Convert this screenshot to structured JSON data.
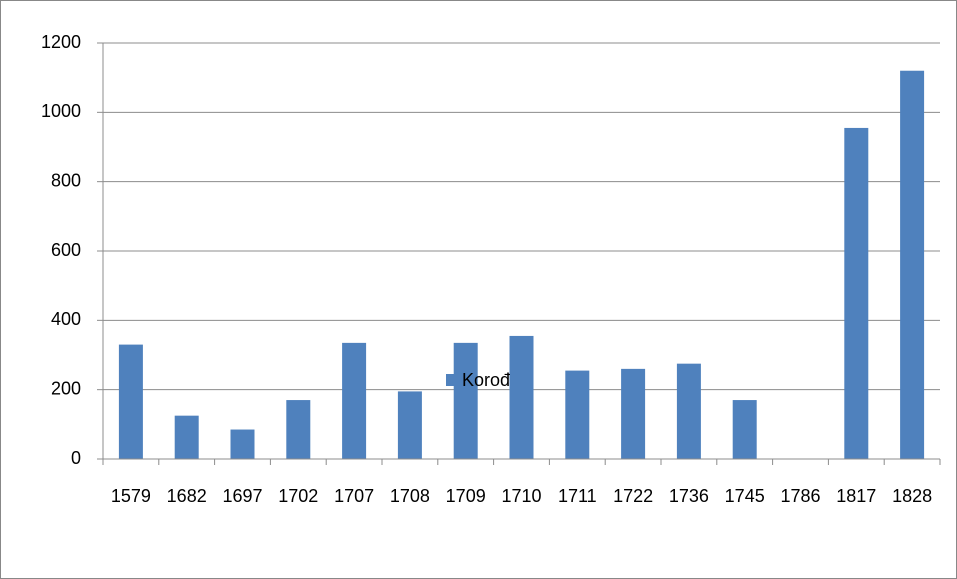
{
  "chart_data": {
    "type": "bar",
    "categories": [
      "1579",
      "1682",
      "1697",
      "1702",
      "1707",
      "1708",
      "1709",
      "1710",
      "1711",
      "1722",
      "1736",
      "1745",
      "1786",
      "1817",
      "1828"
    ],
    "series": [
      {
        "name": "Korođ",
        "color": "#4f81bd",
        "values": [
          330,
          125,
          85,
          170,
          335,
          195,
          335,
          355,
          255,
          260,
          275,
          170,
          0,
          955,
          1120
        ]
      }
    ],
    "ylim": [
      0,
      1200
    ],
    "yticks": [
      0,
      200,
      400,
      600,
      800,
      1000,
      1200
    ],
    "grid": true,
    "legend": "bottom"
  }
}
